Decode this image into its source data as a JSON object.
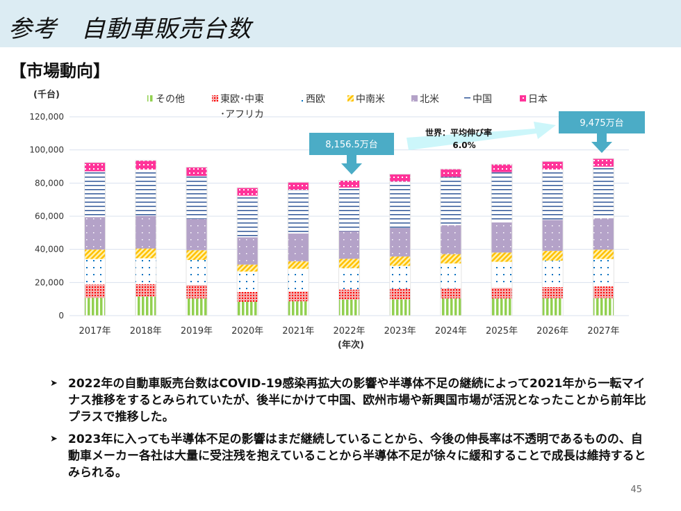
{
  "header": {
    "title": "参考　自動車販売台数"
  },
  "section": "【市場動向】",
  "chart_data": {
    "type": "bar",
    "stacked": true,
    "ylabel": "(千台)",
    "xlabel": "(年次)",
    "ylim": [
      0,
      120000
    ],
    "yticks": [
      "0",
      "20,000",
      "40,000",
      "60,000",
      "80,000",
      "100,000",
      "120,000"
    ],
    "grid": true,
    "legend_position": "top",
    "categories": [
      "2017年",
      "2018年",
      "2019年",
      "2020年",
      "2021年",
      "2022年",
      "2023年",
      "2024年",
      "2025年",
      "2026年",
      "2027年"
    ],
    "series": [
      {
        "name": "その他",
        "color": "#92d050",
        "values": [
          10800,
          11500,
          10400,
          8400,
          8700,
          9700,
          9800,
          10400,
          10400,
          10500,
          10600
        ]
      },
      {
        "name": "東欧･中東･アフリカ",
        "color": "#ff0000",
        "values": [
          8000,
          7500,
          8100,
          5900,
          5900,
          6000,
          6400,
          6100,
          6400,
          6700,
          7000
        ]
      },
      {
        "name": "西欧",
        "color": "#0070c0",
        "values": [
          15400,
          15600,
          15100,
          12300,
          13700,
          13000,
          13800,
          15000,
          15700,
          16000,
          16600
        ]
      },
      {
        "name": "中南米",
        "color": "#ffc000",
        "values": [
          5700,
          5900,
          5900,
          4200,
          4500,
          5600,
          5700,
          5600,
          5600,
          5900,
          5600
        ]
      },
      {
        "name": "北米",
        "color": "#b4a2c8",
        "values": [
          19600,
          19700,
          18900,
          16500,
          16800,
          16700,
          17200,
          17500,
          18200,
          18600,
          19000
        ]
      },
      {
        "name": "中国",
        "color": "#2f5597",
        "values": [
          27600,
          28000,
          25900,
          25100,
          26300,
          26300,
          28000,
          29100,
          30300,
          30500,
          31100
        ]
      },
      {
        "name": "日本",
        "color": "#ff3399",
        "values": [
          5300,
          5500,
          5300,
          4800,
          4600,
          4300,
          4500,
          4800,
          4800,
          4900,
          4900
        ]
      }
    ],
    "annotations": {
      "callout_2022": "8,156.5万台",
      "callout_2027": "9,475万台",
      "growth_label": "世界：平均伸び率",
      "growth_value": "6.0%"
    }
  },
  "bullets": [
    "2022年の自動車販売台数はCOVID-19感染再拡大の影響や半導体不足の継続によって2021年から一転マイナス推移をするとみられていたが、後半にかけて中国、欧州市場や新興国市場が活況となったことから前年比プラスで推移した。",
    "2023年に入っても半導体不足の影響はまだ継続していることから、今後の伸長率は不透明であるものの、自動車メーカー各社は大量に受注残を抱えていることから半導体不足が徐々に緩和することで成長は維持するとみられる。"
  ],
  "bullet_marker": "➤",
  "page_number": "45"
}
